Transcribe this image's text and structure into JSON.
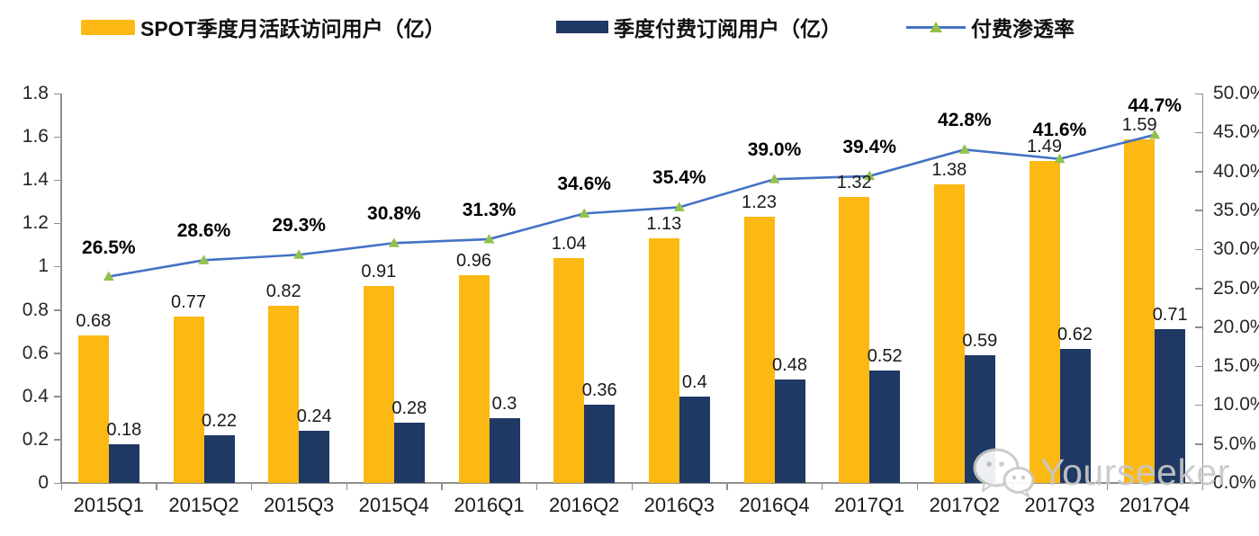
{
  "legend": {
    "items": [
      {
        "label": "SPOT季度月活跃访问用户（亿）",
        "swatch": "yellow-bar-swatch"
      },
      {
        "label": "季度付费订阅用户（亿）",
        "swatch": "navy-bar-swatch"
      },
      {
        "label": "付费渗透率",
        "swatch": "line-triangle-marker-swatch"
      }
    ]
  },
  "chart_data": {
    "type": "bar",
    "subtype": "combo-bar-line-dual-axis",
    "categories": [
      "2015Q1",
      "2015Q2",
      "2015Q3",
      "2015Q4",
      "2016Q1",
      "2016Q2",
      "2016Q3",
      "2016Q4",
      "2017Q1",
      "2017Q2",
      "2017Q3",
      "2017Q4"
    ],
    "series": [
      {
        "name": "SPOT季度月活跃访问用户（亿）",
        "type": "bar",
        "axis": "left",
        "color": "#FCB813",
        "values": [
          0.68,
          0.77,
          0.82,
          0.91,
          0.96,
          1.04,
          1.13,
          1.23,
          1.32,
          1.38,
          1.49,
          1.59
        ],
        "labels": [
          "0.68",
          "0.77",
          "0.82",
          "0.91",
          "0.96",
          "1.04",
          "1.13",
          "1.23",
          "1.32",
          "1.38",
          "1.49",
          "1.59"
        ]
      },
      {
        "name": "季度付费订阅用户（亿）",
        "type": "bar",
        "axis": "left",
        "color": "#1F3864",
        "values": [
          0.18,
          0.22,
          0.24,
          0.28,
          0.3,
          0.36,
          0.4,
          0.48,
          0.52,
          0.59,
          0.62,
          0.71
        ],
        "labels": [
          "0.18",
          "0.22",
          "0.24",
          "0.28",
          "0.3",
          "0.36",
          "0.4",
          "0.48",
          "0.52",
          "0.59",
          "0.62",
          "0.71"
        ]
      },
      {
        "name": "付费渗透率",
        "type": "line",
        "axis": "right",
        "color": "#4472C4",
        "marker": "triangle",
        "marker_color": "#92C14F",
        "values": [
          26.5,
          28.6,
          29.3,
          30.8,
          31.3,
          34.6,
          35.4,
          39.0,
          39.4,
          42.8,
          41.6,
          44.7
        ],
        "labels": [
          "26.5%",
          "28.6%",
          "29.3%",
          "30.8%",
          "31.3%",
          "34.6%",
          "35.4%",
          "39.0%",
          "39.4%",
          "42.8%",
          "41.6%",
          "44.7%"
        ]
      }
    ],
    "left_axis": {
      "min": 0,
      "max": 1.8,
      "tick_labels": [
        "0",
        "0.2",
        "0.4",
        "0.6",
        "0.8",
        "1",
        "1.2",
        "1.4",
        "1.6",
        "1.8"
      ]
    },
    "right_axis": {
      "min": 0,
      "max": 50,
      "tick_labels": [
        "0.0%",
        "5.0%",
        "10.0%",
        "15.0%",
        "20.0%",
        "25.0%",
        "30.0%",
        "35.0%",
        "40.0%",
        "45.0%",
        "50.0%"
      ]
    },
    "grid": false,
    "legend_position": "top",
    "title": ""
  },
  "watermark": {
    "text": "Yourseeker"
  }
}
